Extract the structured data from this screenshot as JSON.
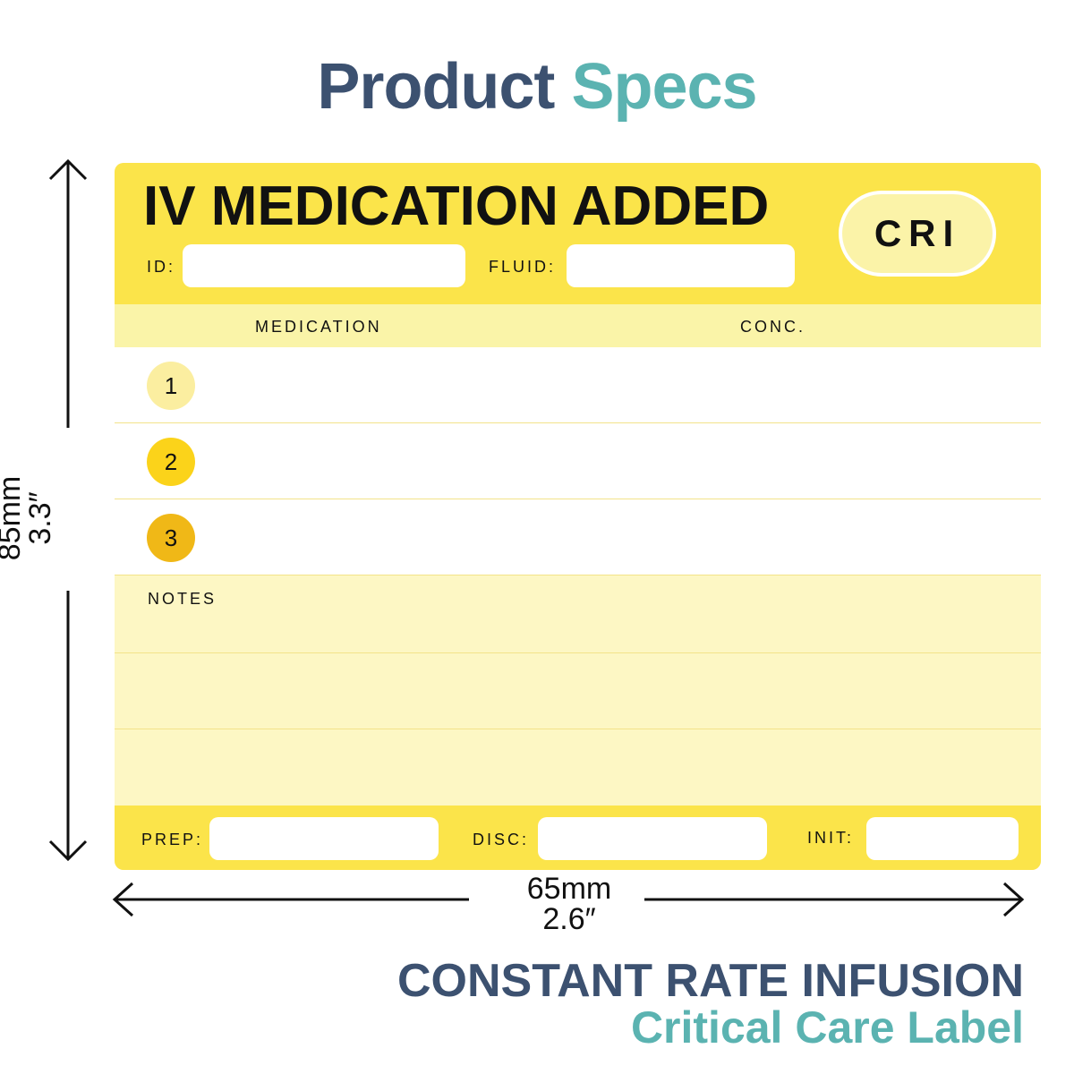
{
  "heading": {
    "part1": "Product",
    "part2": "Specs"
  },
  "label": {
    "title": "IV MEDICATION ADDED",
    "badge": "CRI",
    "id_label": "ID:",
    "fluid_label": "FLUID:",
    "col_medication": "MEDICATION",
    "col_conc": "CONC.",
    "rows": [
      "1",
      "2",
      "3"
    ],
    "notes_label": "NOTES",
    "prep_label": "PREP:",
    "disc_label": "DISC:",
    "init_label": "INIT:"
  },
  "dimensions": {
    "height_mm": "85mm",
    "height_in": "3.3″",
    "width_mm": "65mm",
    "width_in": "2.6″"
  },
  "footer": {
    "line1": "CONSTANT RATE INFUSION",
    "line2": "Critical Care Label"
  },
  "colors": {
    "band": "#fbe44a",
    "header_row": "#faf4a8",
    "notes": "#fdf7c4",
    "row1_circle": "#fbeea0",
    "row2_circle": "#fbd31a",
    "row3_circle": "#f0b817",
    "navy": "#3c5170",
    "teal": "#5bb3b1"
  }
}
